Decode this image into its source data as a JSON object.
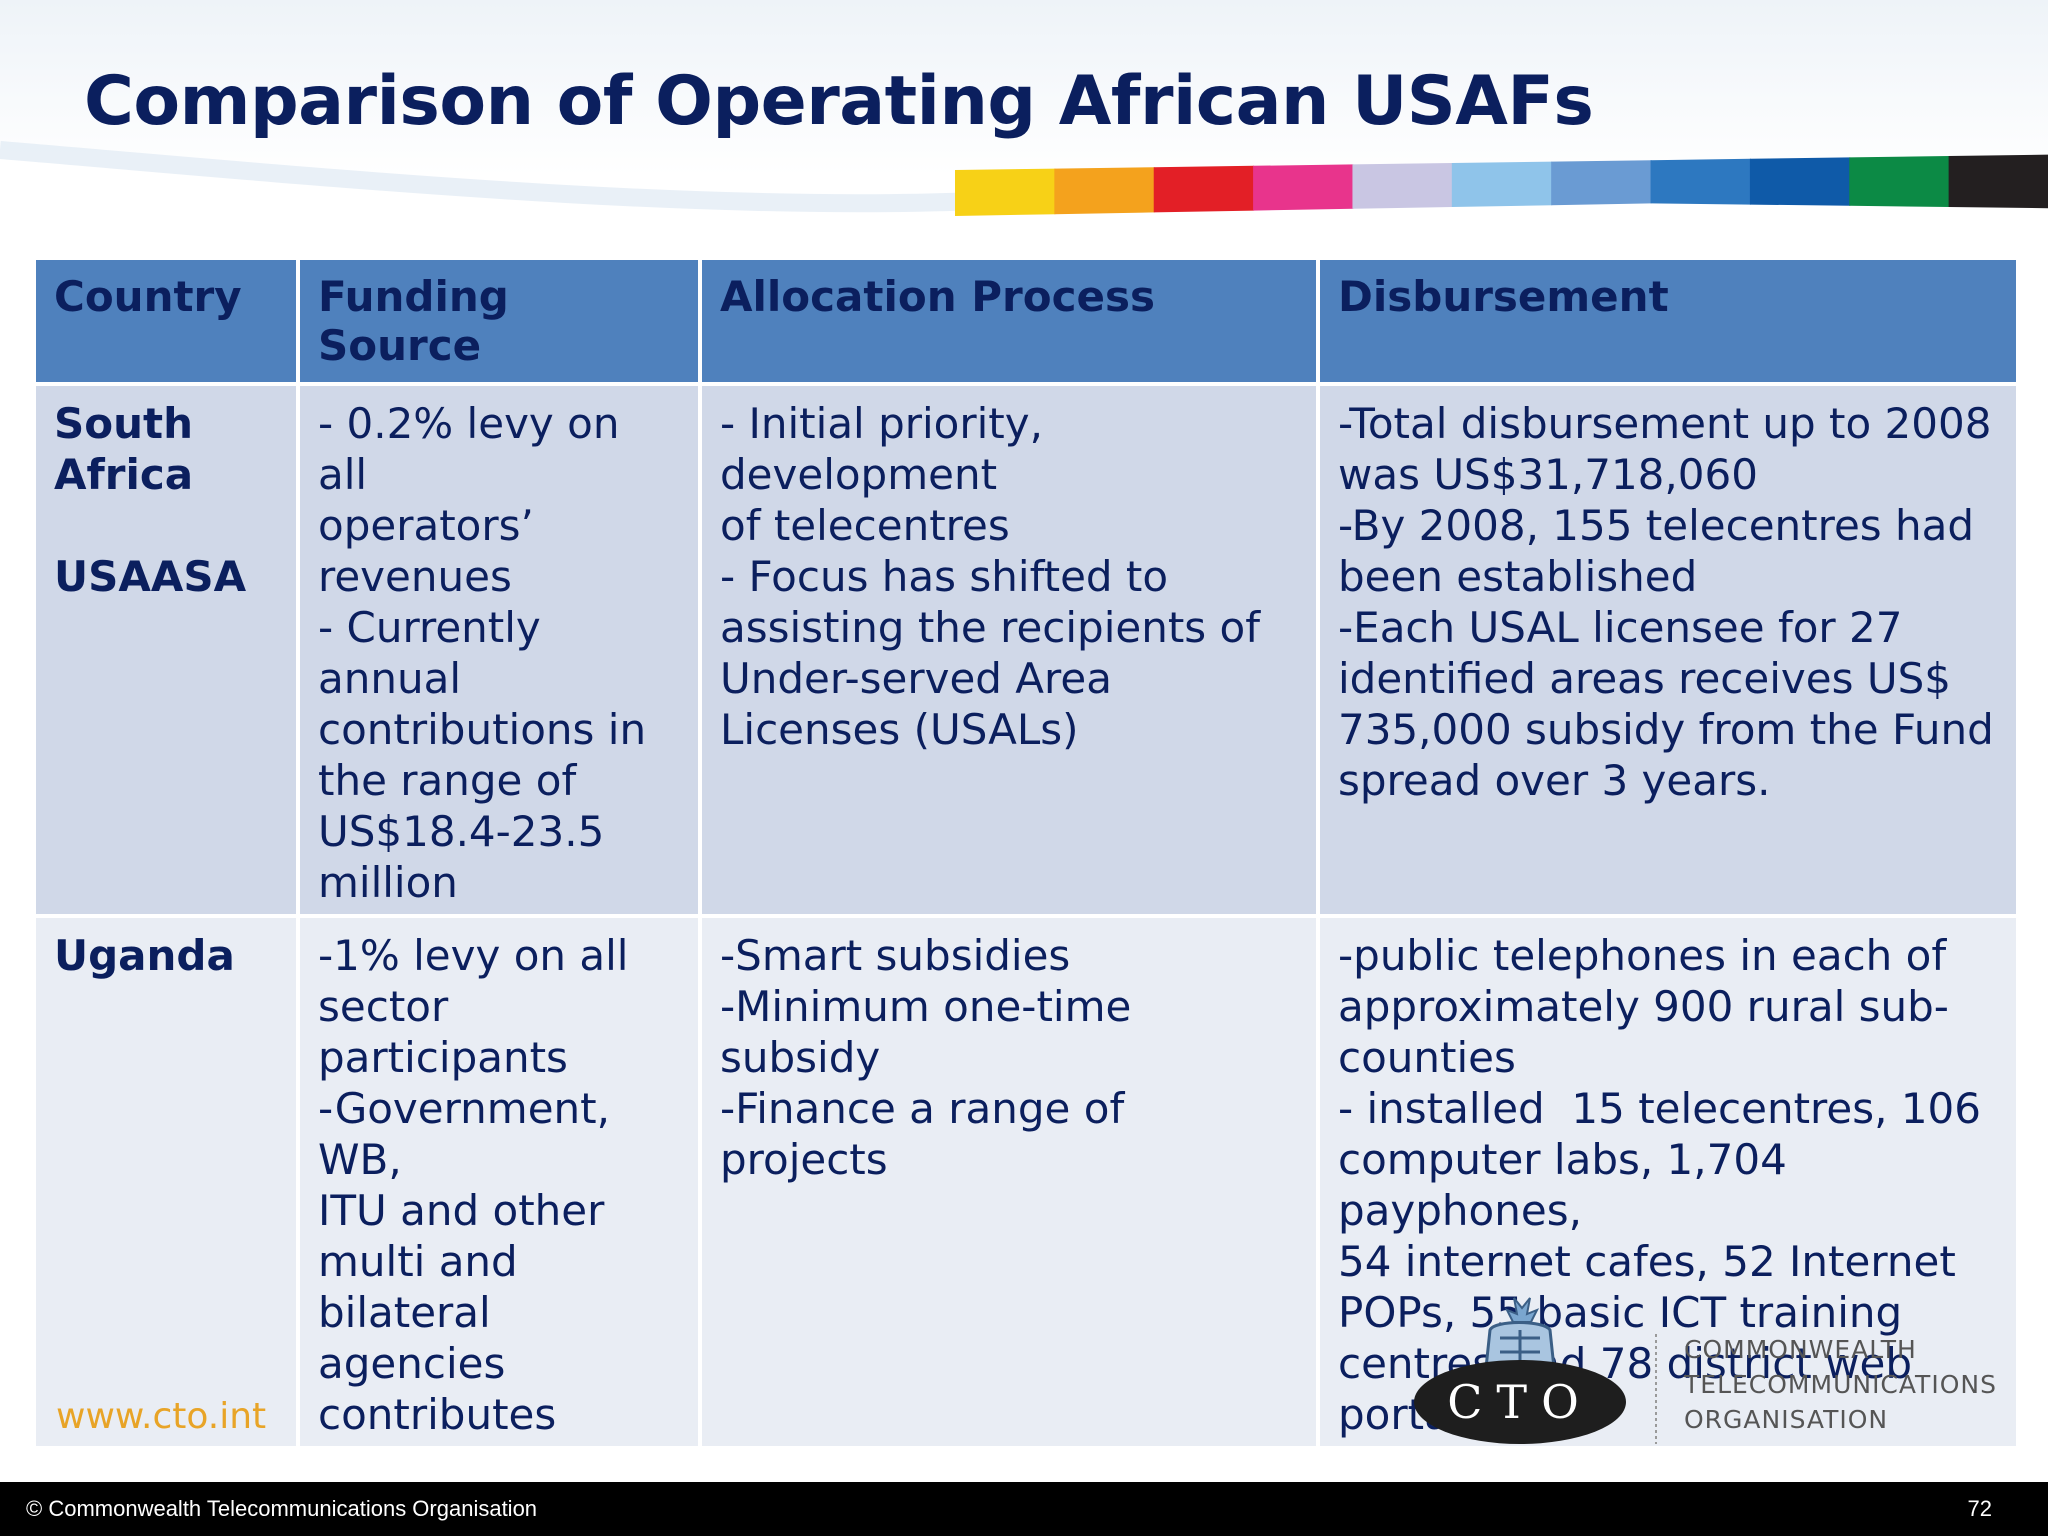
{
  "slide": {
    "title": "Comparison of Operating African USAFs",
    "url": "www.cto.int",
    "footer_copyright": "© Commonwealth Telecommunications Organisation",
    "page_number": "72"
  },
  "table": {
    "headers": [
      "Country",
      "Funding Source",
      "Allocation Process",
      "Disbursement"
    ],
    "rows": [
      {
        "country": [
          "South",
          "Africa",
          "",
          "USAASA"
        ],
        "funding": [
          "- 0.2% levy on all",
          "operators’",
          "revenues",
          "- Currently annual",
          "contributions in",
          "the range of",
          "US$18.4-23.5",
          "million"
        ],
        "allocation": [
          "- Initial priority, development",
          "of telecentres",
          "- Focus has shifted to",
          "assisting the recipients of",
          "Under-served Area",
          "Licenses (USALs)"
        ],
        "disbursement": [
          "-Total disbursement up to 2008",
          "was US$31,718,060",
          "-By 2008, 155 telecentres had",
          "been established",
          "-Each USAL licensee for 27",
          "identified areas receives US$",
          "735,000 subsidy from the Fund",
          "spread over 3 years."
        ]
      },
      {
        "country": [
          "Uganda"
        ],
        "funding": [
          "-1% levy on all",
          "sector participants",
          "-Government, WB,",
          "ITU and other",
          "multi and bilateral",
          "agencies",
          "contributes"
        ],
        "allocation": [
          "-Smart subsidies",
          "-Minimum one-time subsidy",
          "-Finance a range of  projects"
        ],
        "disbursement": [
          "-public telephones in each of",
          "approximately 900 rural sub-",
          "counties",
          "- installed  15 telecentres, 106",
          "computer labs, 1,704 payphones,",
          "54 internet cafes, 52 Internet",
          "POPs, 55 basic ICT training",
          "centres and 78 district web portals"
        ]
      }
    ]
  },
  "logo": {
    "acronym": "CTO",
    "org_lines": [
      "COMMONWEALTH",
      "TELECOMMUNICATIONS",
      "ORGANISATION"
    ]
  },
  "colors": {
    "title": "#0b1f5e",
    "header_bg": "#4f81bd",
    "row_a_bg": "#d0d8e8",
    "row_b_bg": "#e9edf4",
    "url": "#e8a427",
    "strip": [
      "#f7d117",
      "#f4a21d",
      "#e31f26",
      "#e8348c",
      "#c9c6e3",
      "#8fc4ea",
      "#6a9bd3",
      "#2d78c0",
      "#0f5aa8",
      "#0c8a45",
      "#231f20"
    ]
  }
}
